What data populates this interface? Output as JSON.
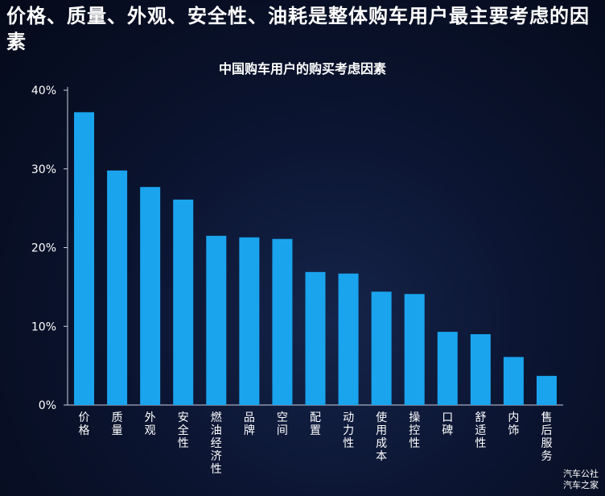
{
  "headline": "价格、质量、外观、安全性、油耗是整体购车用户最主要考虑的因素",
  "watermark": {
    "line1": "汽车公社",
    "line2": "汽车之家"
  },
  "colors": {
    "bar": "#1aa4ee",
    "axis": "#c8d0e0",
    "text": "#ffffff"
  },
  "chart_data": {
    "type": "bar",
    "title": "中国购车用户的购买考虑因素",
    "xlabel": "",
    "ylabel": "",
    "ylim": [
      0,
      40
    ],
    "yticks": [
      0,
      10,
      20,
      30,
      40
    ],
    "ytick_labels": [
      "0%",
      "10%",
      "20%",
      "30%",
      "40%"
    ],
    "grid": false,
    "categories": [
      "价格",
      "质量",
      "外观",
      "安全性",
      "燃油经济性",
      "品牌",
      "空间",
      "配置",
      "动力性",
      "使用成本",
      "操控性",
      "口碑",
      "舒适性",
      "内饰",
      "售后服务"
    ],
    "values": [
      37.2,
      29.8,
      27.7,
      26.1,
      21.5,
      21.3,
      21.1,
      16.9,
      16.7,
      14.4,
      14.1,
      9.3,
      9.0,
      6.1,
      3.7
    ]
  }
}
